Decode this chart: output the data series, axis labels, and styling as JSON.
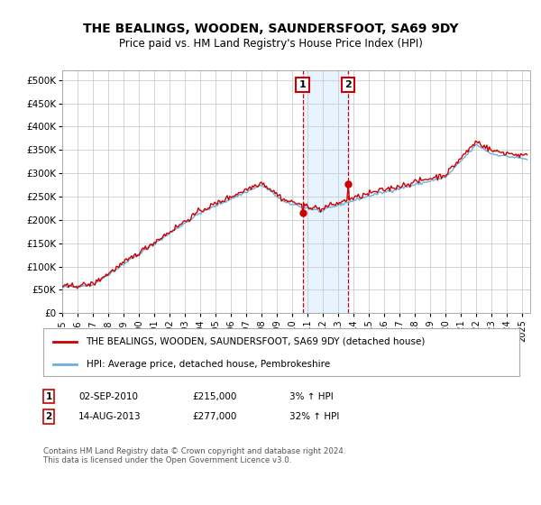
{
  "title": "THE BEALINGS, WOODEN, SAUNDERSFOOT, SA69 9DY",
  "subtitle": "Price paid vs. HM Land Registry's House Price Index (HPI)",
  "ylabel_ticks": [
    "£0",
    "£50K",
    "£100K",
    "£150K",
    "£200K",
    "£250K",
    "£300K",
    "£350K",
    "£400K",
    "£450K",
    "£500K"
  ],
  "ytick_values": [
    0,
    50000,
    100000,
    150000,
    200000,
    250000,
    300000,
    350000,
    400000,
    450000,
    500000
  ],
  "ylim": [
    0,
    520000
  ],
  "xlim_start": 1995.0,
  "xlim_end": 2025.5,
  "xtick_years": [
    1995,
    1996,
    1997,
    1998,
    1999,
    2000,
    2001,
    2002,
    2003,
    2004,
    2005,
    2006,
    2007,
    2008,
    2009,
    2010,
    2011,
    2012,
    2013,
    2014,
    2015,
    2016,
    2017,
    2018,
    2019,
    2020,
    2021,
    2022,
    2023,
    2024,
    2025
  ],
  "hpi_color": "#6ab0de",
  "price_color": "#cc0000",
  "event1_x": 2010.67,
  "event2_x": 2013.62,
  "event1_price": 215000,
  "event2_price": 277000,
  "legend_line1": "THE BEALINGS, WOODEN, SAUNDERSFOOT, SA69 9DY (detached house)",
  "legend_line2": "HPI: Average price, detached house, Pembrokeshire",
  "table_row1_date": "02-SEP-2010",
  "table_row1_price": "£215,000",
  "table_row1_hpi": "3% ↑ HPI",
  "table_row2_date": "14-AUG-2013",
  "table_row2_price": "£277,000",
  "table_row2_hpi": "32% ↑ HPI",
  "footer": "Contains HM Land Registry data © Crown copyright and database right 2024.\nThis data is licensed under the Open Government Licence v3.0.",
  "bg_color": "#ffffff",
  "grid_color": "#cccccc",
  "highlight_bg": "#ddeeff"
}
